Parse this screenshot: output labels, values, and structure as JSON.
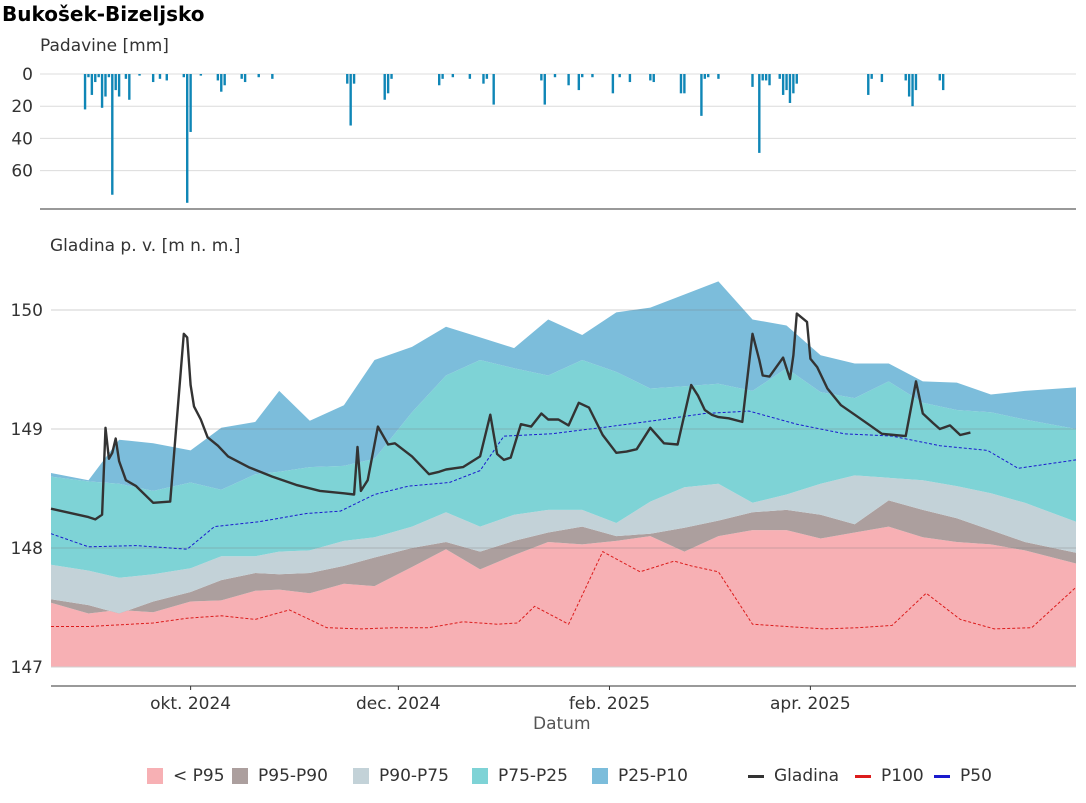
{
  "title": "Bukošek-Bizeljsko",
  "chart_data": [
    {
      "type": "bar",
      "name": "precipitation",
      "ylabel": "Padavine [mm]",
      "y_reversed": true,
      "ylim": [
        0,
        80
      ],
      "yticks": [
        0,
        20,
        40,
        60
      ],
      "color": "#0f86b6",
      "points": [
        [
          "2024-08-31",
          22
        ],
        [
          "2024-09-01",
          2
        ],
        [
          "2024-09-02",
          13
        ],
        [
          "2024-09-03",
          5
        ],
        [
          "2024-09-04",
          2
        ],
        [
          "2024-09-05",
          21
        ],
        [
          "2024-09-06",
          14
        ],
        [
          "2024-09-07",
          2
        ],
        [
          "2024-09-08",
          75
        ],
        [
          "2024-09-09",
          10
        ],
        [
          "2024-09-10",
          14
        ],
        [
          "2024-09-12",
          3
        ],
        [
          "2024-09-13",
          16
        ],
        [
          "2024-09-16",
          1
        ],
        [
          "2024-09-20",
          5
        ],
        [
          "2024-09-22",
          3
        ],
        [
          "2024-09-24",
          4
        ],
        [
          "2024-09-29",
          2
        ],
        [
          "2024-09-30",
          80
        ],
        [
          "2024-10-01",
          36
        ],
        [
          "2024-10-04",
          1
        ],
        [
          "2024-10-09",
          4
        ],
        [
          "2024-10-10",
          11
        ],
        [
          "2024-10-11",
          7
        ],
        [
          "2024-10-16",
          3
        ],
        [
          "2024-10-17",
          5
        ],
        [
          "2024-10-21",
          2
        ],
        [
          "2024-10-25",
          3
        ],
        [
          "2024-11-16",
          6
        ],
        [
          "2024-11-17",
          32
        ],
        [
          "2024-11-18",
          6
        ],
        [
          "2024-11-27",
          16
        ],
        [
          "2024-11-28",
          12
        ],
        [
          "2024-11-29",
          3
        ],
        [
          "2024-12-13",
          7
        ],
        [
          "2024-12-14",
          3
        ],
        [
          "2024-12-17",
          2
        ],
        [
          "2024-12-22",
          3
        ],
        [
          "2024-12-26",
          6
        ],
        [
          "2024-12-27",
          3
        ],
        [
          "2024-12-29",
          19
        ],
        [
          "2025-01-12",
          4
        ],
        [
          "2025-01-13",
          19
        ],
        [
          "2025-01-16",
          2
        ],
        [
          "2025-01-20",
          7
        ],
        [
          "2025-01-23",
          10
        ],
        [
          "2025-01-24",
          2
        ],
        [
          "2025-01-27",
          2
        ],
        [
          "2025-02-02",
          12
        ],
        [
          "2025-02-04",
          2
        ],
        [
          "2025-02-07",
          5
        ],
        [
          "2025-02-13",
          4
        ],
        [
          "2025-02-14",
          5
        ],
        [
          "2025-02-22",
          12
        ],
        [
          "2025-02-23",
          12
        ],
        [
          "2025-02-28",
          26
        ],
        [
          "2025-03-01",
          3
        ],
        [
          "2025-03-02",
          2
        ],
        [
          "2025-03-05",
          3
        ],
        [
          "2025-03-15",
          8
        ],
        [
          "2025-03-17",
          49
        ],
        [
          "2025-03-18",
          4
        ],
        [
          "2025-03-19",
          4
        ],
        [
          "2025-03-20",
          7
        ],
        [
          "2025-03-23",
          3
        ],
        [
          "2025-03-24",
          13
        ],
        [
          "2025-03-25",
          10
        ],
        [
          "2025-03-26",
          18
        ],
        [
          "2025-03-27",
          12
        ],
        [
          "2025-03-28",
          6
        ],
        [
          "2025-04-18",
          13
        ],
        [
          "2025-04-19",
          3
        ],
        [
          "2025-04-22",
          5
        ],
        [
          "2025-04-29",
          4
        ],
        [
          "2025-04-30",
          14
        ],
        [
          "2025-05-01",
          20
        ],
        [
          "2025-05-02",
          10
        ],
        [
          "2025-05-09",
          4
        ],
        [
          "2025-05-10",
          10
        ]
      ]
    },
    {
      "type": "area",
      "name": "groundwater-level",
      "ylabel": "Gladina p. v. [m n. m.]",
      "xlabel": "Datum",
      "ylim": [
        146.85,
        150.27
      ],
      "yticks": [
        147,
        148,
        149,
        150
      ],
      "xlim": [
        "2024-08-21",
        "2025-06-18"
      ],
      "xticks": [
        {
          "date": "2024-10-01",
          "label": "okt. 2024"
        },
        {
          "date": "2024-12-01",
          "label": "dec. 2024"
        },
        {
          "date": "2025-02-01",
          "label": "feb. 2025"
        },
        {
          "date": "2025-04-01",
          "label": "apr. 2025"
        }
      ],
      "band_dates": [
        "2024-08-21",
        "2024-09-01",
        "2024-09-10",
        "2024-09-20",
        "2024-10-01",
        "2024-10-10",
        "2024-10-20",
        "2024-10-27",
        "2024-11-05",
        "2024-11-15",
        "2024-11-24",
        "2024-12-05",
        "2024-12-15",
        "2024-12-25",
        "2025-01-04",
        "2025-01-14",
        "2025-01-24",
        "2025-02-03",
        "2025-02-13",
        "2025-02-23",
        "2025-03-05",
        "2025-03-15",
        "2025-03-25",
        "2025-04-04",
        "2025-04-14",
        "2025-04-24",
        "2025-05-04",
        "2025-05-14",
        "2025-05-24",
        "2025-06-03",
        "2025-06-18"
      ],
      "bands": [
        {
          "name": "< P95",
          "color": "#f7b0b4",
          "upper": [
            147.54,
            147.45,
            147.48,
            147.46,
            147.55,
            147.56,
            147.64,
            147.65,
            147.62,
            147.7,
            147.68,
            147.84,
            147.99,
            147.82,
            147.94,
            148.05,
            148.03,
            148.06,
            148.1,
            147.97,
            148.1,
            148.15,
            148.15,
            148.08,
            148.13,
            148.18,
            148.09,
            148.05,
            148.03,
            147.98,
            147.87
          ]
        },
        {
          "name": "P95-P90",
          "color": "#ac9f9e",
          "upper": [
            147.57,
            147.52,
            147.45,
            147.55,
            147.63,
            147.73,
            147.79,
            147.78,
            147.79,
            147.85,
            147.92,
            148.0,
            148.05,
            147.97,
            148.06,
            148.13,
            148.18,
            148.1,
            148.12,
            148.17,
            148.23,
            148.3,
            148.32,
            148.28,
            148.2,
            148.4,
            148.32,
            148.25,
            148.15,
            148.05,
            147.96
          ]
        },
        {
          "name": "P90-P75",
          "color": "#c3d2d8",
          "upper": [
            147.86,
            147.81,
            147.75,
            147.78,
            147.83,
            147.93,
            147.93,
            147.97,
            147.98,
            148.06,
            148.09,
            148.18,
            148.3,
            148.18,
            148.28,
            148.32,
            148.32,
            148.21,
            148.39,
            148.51,
            148.54,
            148.38,
            148.45,
            148.54,
            148.61,
            148.59,
            148.57,
            148.52,
            148.46,
            148.38,
            148.22
          ]
        },
        {
          "name": "P75-P25",
          "color": "#7ed3d6",
          "upper": [
            148.6,
            148.56,
            148.54,
            148.48,
            148.55,
            148.49,
            148.62,
            148.64,
            148.68,
            148.69,
            148.75,
            149.14,
            149.45,
            149.58,
            149.51,
            149.45,
            149.58,
            149.48,
            149.34,
            149.36,
            149.38,
            149.32,
            149.51,
            149.31,
            149.26,
            149.4,
            149.22,
            149.16,
            149.14,
            149.08,
            149.0
          ]
        },
        {
          "name": "P25-P10",
          "color": "#7cbddb",
          "upper": [
            148.63,
            148.57,
            148.91,
            148.88,
            148.82,
            149.01,
            149.06,
            149.32,
            149.07,
            149.2,
            149.58,
            149.69,
            149.86,
            149.77,
            149.68,
            149.92,
            149.79,
            149.98,
            150.02,
            150.13,
            150.24,
            149.92,
            149.87,
            149.62,
            149.55,
            149.55,
            149.4,
            149.39,
            149.29,
            149.32,
            149.35
          ]
        }
      ],
      "lines": [
        {
          "name": "P50",
          "color": "#1a1acd",
          "style": "dashed",
          "width": 1,
          "dates": [
            "2024-08-21",
            "2024-09-01",
            "2024-09-15",
            "2024-09-30",
            "2024-10-08",
            "2024-10-21",
            "2024-11-04",
            "2024-11-14",
            "2024-11-24",
            "2024-12-04",
            "2024-12-16",
            "2024-12-25",
            "2025-01-01",
            "2025-01-15",
            "2025-02-01",
            "2025-02-14",
            "2025-03-01",
            "2025-03-14",
            "2025-03-28",
            "2025-04-11",
            "2025-04-25",
            "2025-05-09",
            "2025-05-23",
            "2025-06-01",
            "2025-06-18"
          ],
          "values": [
            148.12,
            148.01,
            148.02,
            147.99,
            148.18,
            148.22,
            148.29,
            148.31,
            148.45,
            148.52,
            148.55,
            148.65,
            148.94,
            148.96,
            149.02,
            149.07,
            149.13,
            149.15,
            149.04,
            148.96,
            148.94,
            148.86,
            148.82,
            148.67,
            148.74
          ]
        },
        {
          "name": "P100",
          "color": "#dc1c1c",
          "style": "dashed",
          "width": 1,
          "dates": [
            "2024-08-21",
            "2024-09-01",
            "2024-09-20",
            "2024-09-30",
            "2024-10-10",
            "2024-10-20",
            "2024-10-30",
            "2024-11-10",
            "2024-11-20",
            "2024-11-30",
            "2024-12-10",
            "2024-12-20",
            "2024-12-30",
            "2025-01-05",
            "2025-01-10",
            "2025-01-20",
            "2025-01-30",
            "2025-02-10",
            "2025-02-20",
            "2025-02-25",
            "2025-03-05",
            "2025-03-15",
            "2025-03-25",
            "2025-04-05",
            "2025-04-15",
            "2025-04-25",
            "2025-05-05",
            "2025-05-15",
            "2025-05-25",
            "2025-06-05",
            "2025-06-18"
          ],
          "values": [
            147.34,
            147.34,
            147.37,
            147.41,
            147.43,
            147.4,
            147.48,
            147.33,
            147.32,
            147.33,
            147.33,
            147.38,
            147.36,
            147.37,
            147.51,
            147.36,
            147.97,
            147.8,
            147.89,
            147.85,
            147.8,
            147.36,
            147.34,
            147.32,
            147.33,
            147.35,
            147.62,
            147.4,
            147.32,
            147.33,
            147.67
          ]
        },
        {
          "name": "Gladina",
          "color": "#333333",
          "style": "solid",
          "width": 2.4,
          "dates": [
            "2024-08-21",
            "2024-09-01",
            "2024-09-03",
            "2024-09-05",
            "2024-09-06",
            "2024-09-07",
            "2024-09-08",
            "2024-09-09",
            "2024-09-10",
            "2024-09-12",
            "2024-09-15",
            "2024-09-20",
            "2024-09-25",
            "2024-09-29",
            "2024-09-30",
            "2024-10-01",
            "2024-10-02",
            "2024-10-04",
            "2024-10-06",
            "2024-10-09",
            "2024-10-12",
            "2024-10-18",
            "2024-10-25",
            "2024-11-01",
            "2024-11-08",
            "2024-11-15",
            "2024-11-18",
            "2024-11-19",
            "2024-11-20",
            "2024-11-22",
            "2024-11-25",
            "2024-11-28",
            "2024-11-30",
            "2024-12-05",
            "2024-12-10",
            "2024-12-13",
            "2024-12-15",
            "2024-12-20",
            "2024-12-25",
            "2024-12-28",
            "2024-12-30",
            "2025-01-01",
            "2025-01-03",
            "2025-01-06",
            "2025-01-09",
            "2025-01-12",
            "2025-01-14",
            "2025-01-17",
            "2025-01-20",
            "2025-01-23",
            "2025-01-26",
            "2025-01-30",
            "2025-02-03",
            "2025-02-06",
            "2025-02-09",
            "2025-02-13",
            "2025-02-17",
            "2025-02-21",
            "2025-02-25",
            "2025-02-27",
            "2025-03-01",
            "2025-03-03",
            "2025-03-05",
            "2025-03-08",
            "2025-03-12",
            "2025-03-15",
            "2025-03-17",
            "2025-03-18",
            "2025-03-20",
            "2025-03-24",
            "2025-03-26",
            "2025-03-27",
            "2025-03-28",
            "2025-03-31",
            "2025-04-01",
            "2025-04-03",
            "2025-04-06",
            "2025-04-10",
            "2025-04-14",
            "2025-04-18",
            "2025-04-22",
            "2025-04-29",
            "2025-05-02",
            "2025-05-04",
            "2025-05-07",
            "2025-05-09",
            "2025-05-12",
            "2025-05-15",
            "2025-05-18"
          ],
          "values": [
            148.33,
            148.26,
            148.24,
            148.28,
            149.01,
            148.75,
            148.8,
            148.92,
            148.73,
            148.57,
            148.52,
            148.38,
            148.39,
            149.8,
            149.77,
            149.37,
            149.19,
            149.08,
            148.93,
            148.86,
            148.77,
            148.68,
            148.6,
            148.53,
            148.48,
            148.46,
            148.45,
            148.85,
            148.48,
            148.57,
            149.02,
            148.87,
            148.88,
            148.77,
            148.62,
            148.64,
            148.66,
            148.68,
            148.77,
            149.12,
            148.79,
            148.74,
            148.76,
            149.04,
            149.02,
            149.13,
            149.08,
            149.08,
            149.03,
            149.22,
            149.18,
            148.95,
            148.8,
            148.81,
            148.83,
            149.01,
            148.88,
            148.87,
            149.37,
            149.28,
            149.16,
            149.12,
            149.1,
            149.09,
            149.06,
            149.8,
            149.58,
            149.45,
            149.44,
            149.6,
            149.42,
            149.62,
            149.97,
            149.9,
            149.59,
            149.52,
            149.34,
            149.2,
            149.12,
            149.04,
            148.96,
            148.94,
            149.4,
            149.13,
            149.05,
            149.0,
            149.03,
            148.95,
            148.97
          ]
        }
      ]
    }
  ],
  "legend": [
    {
      "label": "< P95",
      "kind": "box",
      "color": "#f7b0b4"
    },
    {
      "label": "P95-P90",
      "kind": "box",
      "color": "#ac9f9e"
    },
    {
      "label": "P90-P75",
      "kind": "box",
      "color": "#c3d2d8"
    },
    {
      "label": "P75-P25",
      "kind": "box",
      "color": "#7ed3d6"
    },
    {
      "label": "P25-P10",
      "kind": "box",
      "color": "#7cbddb"
    },
    {
      "label": "Gladina",
      "kind": "line",
      "color": "#333333"
    },
    {
      "label": "P100",
      "kind": "line",
      "color": "#dc1c1c"
    },
    {
      "label": "P50",
      "kind": "line",
      "color": "#1a1acd"
    }
  ]
}
